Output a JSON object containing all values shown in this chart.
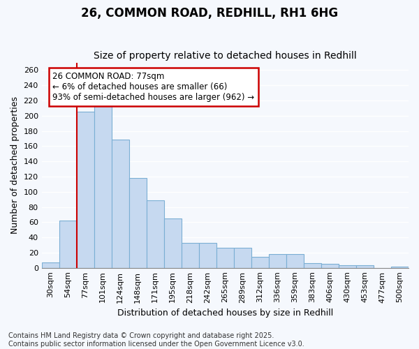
{
  "title": "26, COMMON ROAD, REDHILL, RH1 6HG",
  "subtitle": "Size of property relative to detached houses in Redhill",
  "xlabel": "Distribution of detached houses by size in Redhill",
  "ylabel": "Number of detached properties",
  "categories": [
    "30sqm",
    "54sqm",
    "77sqm",
    "101sqm",
    "124sqm",
    "148sqm",
    "171sqm",
    "195sqm",
    "218sqm",
    "242sqm",
    "265sqm",
    "289sqm",
    "312sqm",
    "336sqm",
    "359sqm",
    "383sqm",
    "406sqm",
    "430sqm",
    "453sqm",
    "477sqm",
    "500sqm"
  ],
  "values": [
    7,
    62,
    205,
    213,
    169,
    118,
    89,
    65,
    33,
    33,
    26,
    26,
    14,
    18,
    18,
    6,
    5,
    3,
    3,
    0,
    2
  ],
  "bar_color": "#c6d9f0",
  "bar_edge_color": "#7bafd4",
  "highlight_index": 2,
  "highlight_line_color": "#cc0000",
  "ylim": [
    0,
    270
  ],
  "yticks": [
    0,
    20,
    40,
    60,
    80,
    100,
    120,
    140,
    160,
    180,
    200,
    220,
    240,
    260
  ],
  "annotation_text": "26 COMMON ROAD: 77sqm\n← 6% of detached houses are smaller (66)\n93% of semi-detached houses are larger (962) →",
  "annotation_box_color": "#ffffff",
  "annotation_border_color": "#cc0000",
  "footnote": "Contains HM Land Registry data © Crown copyright and database right 2025.\nContains public sector information licensed under the Open Government Licence v3.0.",
  "background_color": "#f5f8fd",
  "plot_bg_color": "#f5f8fd",
  "grid_color": "#ffffff",
  "title_fontsize": 12,
  "subtitle_fontsize": 10,
  "label_fontsize": 9,
  "tick_fontsize": 8,
  "annotation_fontsize": 8.5,
  "footnote_fontsize": 7
}
